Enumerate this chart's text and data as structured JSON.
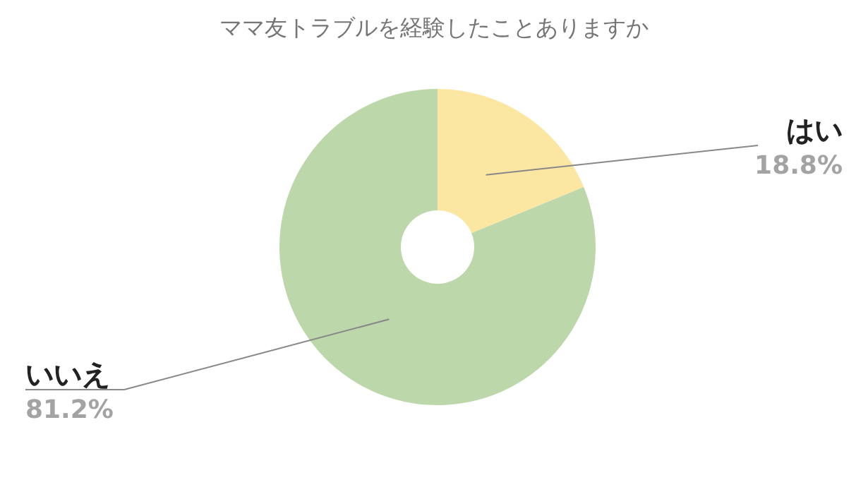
{
  "chart_data": {
    "type": "donut",
    "title": "ママ友トラブルを経験したことありますか",
    "categories": [
      "はい",
      "いいえ"
    ],
    "values": [
      18.8,
      81.2
    ],
    "value_labels": [
      "18.8%",
      "81.2%"
    ],
    "colors": [
      "#fbe6a2",
      "#bcd7aa"
    ]
  }
}
